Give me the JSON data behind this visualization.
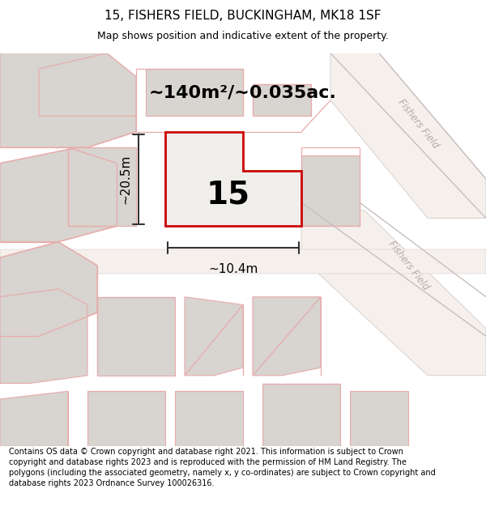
{
  "title_line1": "15, FISHERS FIELD, BUCKINGHAM, MK18 1SF",
  "title_line2": "Map shows position and indicative extent of the property.",
  "footer_text": "Contains OS data © Crown copyright and database right 2021. This information is subject to Crown copyright and database rights 2023 and is reproduced with the permission of HM Land Registry. The polygons (including the associated geometry, namely x, y co-ordinates) are subject to Crown copyright and database rights 2023 Ordnance Survey 100026316.",
  "area_label": "~140m²/~0.035ac.",
  "width_label": "~10.4m",
  "height_label": "~20.5m",
  "plot_number": "15",
  "map_bg": "#ede9e4",
  "plot_fill": "#f0eeeb",
  "plot_outline": "#cc0000",
  "bld_fill": "#d8d4cf",
  "bld_stroke": "#e8aaaa",
  "road_stripe": "#f5f0ec",
  "road_label_color": "#b8aaa8",
  "street_name": "Fishers Field",
  "title_fontsize": 11,
  "subtitle_fontsize": 9,
  "footer_fontsize": 7.0,
  "area_fontsize": 16,
  "dim_fontsize": 11,
  "plot_num_fontsize": 28
}
